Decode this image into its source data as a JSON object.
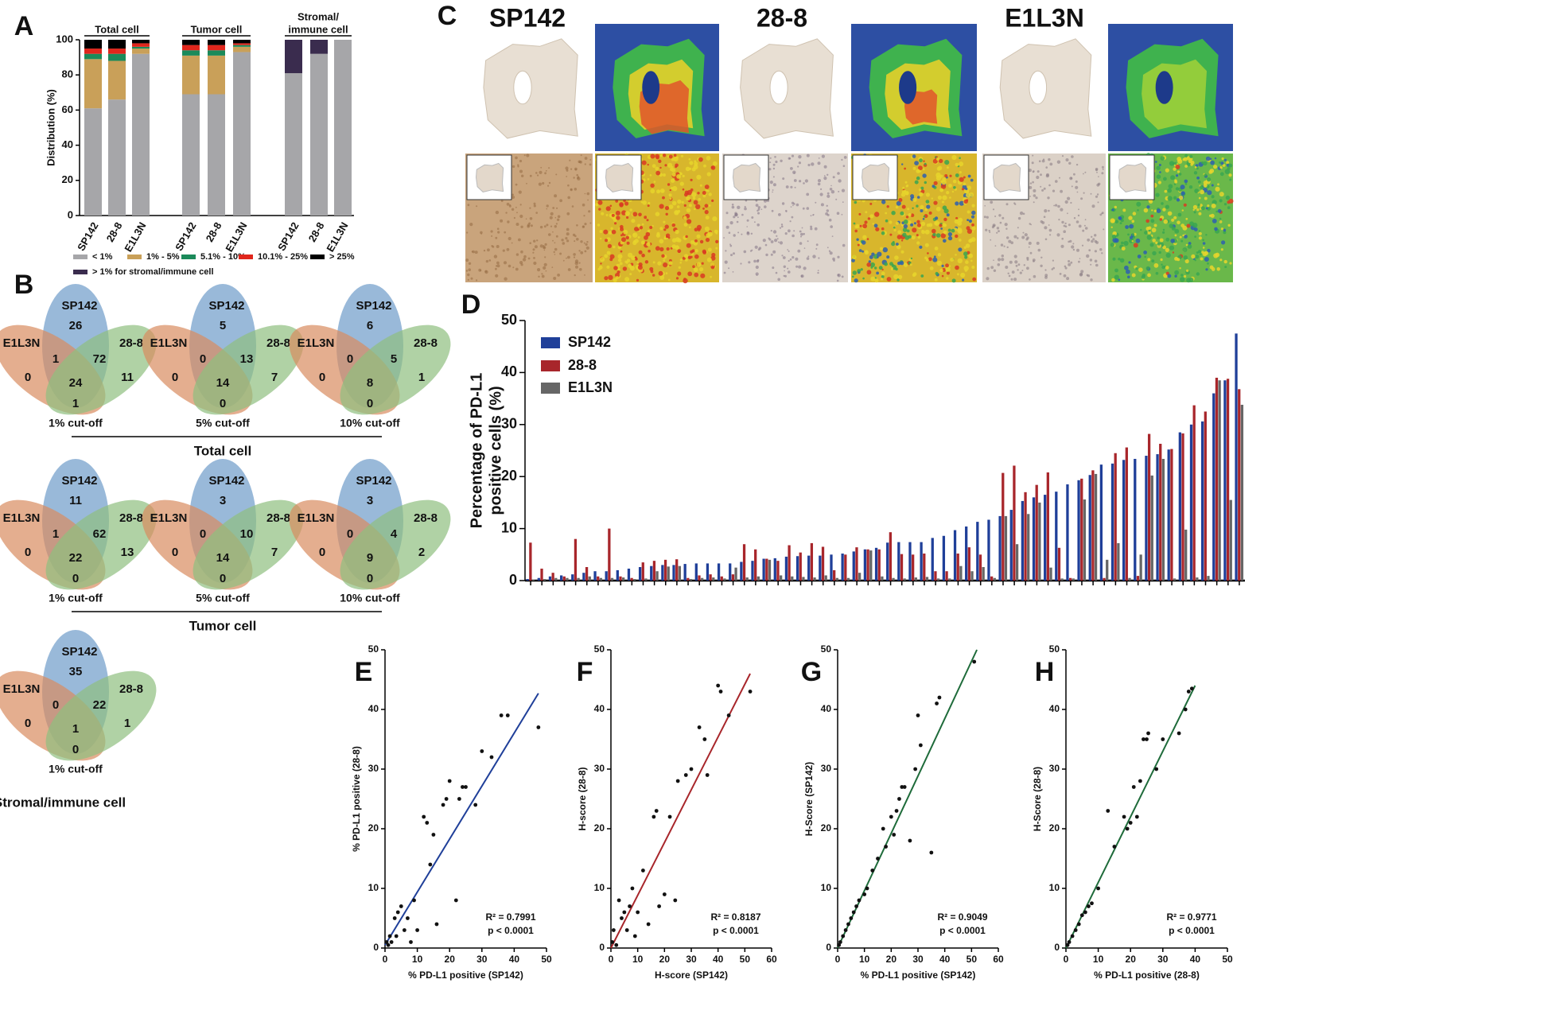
{
  "chart_data": [
    {
      "type": "stacked_bar",
      "panel": "A",
      "ylabel": "Distribution (%)",
      "ylim": [
        0,
        100
      ],
      "yticks": [
        0,
        20,
        40,
        60,
        80,
        100
      ],
      "groups": [
        [
          "Total cell"
        ],
        [
          "Tumor cell"
        ],
        [
          "Stromal/",
          "immune cell"
        ]
      ],
      "categories": [
        "SP142",
        "28-8",
        "E1L3N",
        "SP142",
        "28-8",
        "E1L3N",
        "SP142",
        "28-8",
        "E1L3N"
      ],
      "series": [
        {
          "name": "< 1%",
          "color": "#a6a6a9",
          "values": [
            61,
            66,
            92,
            69,
            69,
            93,
            81,
            92,
            100
          ]
        },
        {
          "name": "1% - 5%",
          "color": "#c9a059",
          "values": [
            28,
            22,
            3,
            22,
            22,
            3,
            0,
            0,
            0
          ]
        },
        {
          "name": "5.1% - 10%",
          "color": "#1b8a5a",
          "values": [
            3,
            4,
            1,
            3,
            3,
            1,
            0,
            0,
            0
          ]
        },
        {
          "name": "10.1% - 25%",
          "color": "#e0261c",
          "values": [
            3,
            3,
            2,
            3,
            3,
            1,
            0,
            0,
            0
          ]
        },
        {
          "name": "> 25%",
          "color": "#000000",
          "values": [
            5,
            5,
            2,
            3,
            3,
            2,
            0,
            0,
            0
          ]
        },
        {
          "name": "> 1% for stromal/immune cell",
          "color": "#3a2c4e",
          "values": [
            0,
            0,
            0,
            0,
            0,
            0,
            19,
            8,
            0
          ]
        }
      ]
    },
    {
      "type": "bar",
      "panel": "D",
      "ylabel": [
        "Percentage of PD-L1",
        "positive cells (%)"
      ],
      "ylim": [
        0,
        50
      ],
      "yticks": [
        0,
        10,
        20,
        30,
        40,
        50
      ],
      "categories": [
        null,
        null,
        null,
        null,
        null,
        null,
        null,
        null,
        null,
        null,
        null,
        null,
        null,
        null,
        null,
        null,
        null,
        null,
        null,
        null,
        null,
        null,
        null,
        null,
        null,
        null,
        null,
        null,
        null,
        null,
        null,
        null,
        null,
        null,
        null,
        null,
        null,
        null,
        null,
        null,
        null,
        null,
        null,
        null,
        null,
        null,
        null,
        null,
        null,
        null,
        null,
        null,
        null,
        null,
        null,
        null,
        null,
        null,
        null,
        null,
        null,
        null,
        null,
        null
      ],
      "series": [
        {
          "name": "SP142",
          "color": "#1f3f99",
          "values": [
            0.3,
            0.5,
            0.8,
            1.0,
            1.2,
            1.5,
            1.8,
            1.8,
            2.0,
            2.3,
            2.6,
            2.8,
            3.0,
            3.0,
            3.2,
            3.3,
            3.3,
            3.3,
            3.3,
            3.6,
            3.8,
            4.2,
            4.3,
            4.6,
            4.7,
            4.8,
            4.8,
            5.0,
            5.2,
            5.6,
            6.0,
            6.3,
            7.3,
            7.4,
            7.4,
            7.4,
            8.2,
            8.6,
            9.7,
            10.4,
            11.3,
            11.7,
            12.4,
            13.6,
            15.3,
            16.0,
            16.5,
            17.1,
            18.5,
            19.3,
            20.3,
            22.3,
            22.5,
            23.2,
            23.4,
            24.0,
            24.3,
            25.2,
            28.5,
            30.0,
            30.6,
            36.0,
            38.5,
            47.5
          ]
        },
        {
          "name": "28-8",
          "color": "#a8262b",
          "values": [
            7.3,
            2.3,
            1.5,
            0.8,
            8.0,
            2.6,
            0.8,
            10.0,
            0.8,
            0.5,
            3.5,
            3.8,
            4.0,
            4.1,
            0.5,
            1.0,
            1.2,
            0.8,
            1.2,
            7.0,
            6.0,
            4.2,
            3.8,
            6.8,
            5.4,
            7.2,
            6.5,
            2.0,
            5.0,
            6.4,
            6.0,
            6.0,
            9.3,
            5.1,
            5.0,
            5.2,
            1.8,
            1.8,
            5.2,
            6.4,
            5.0,
            0.8,
            20.7,
            22.1,
            17.0,
            18.4,
            20.8,
            6.3,
            0.5,
            19.6,
            21.2,
            0.5,
            24.5,
            25.6,
            0.9,
            28.2,
            26.3,
            25.3,
            28.3,
            33.7,
            32.5,
            39.0,
            38.8,
            36.8
          ]
        },
        {
          "name": "E1L3N",
          "color": "#666666",
          "values": [
            0.2,
            0.3,
            0.5,
            0.5,
            0.5,
            0.8,
            0.5,
            0.5,
            0.6,
            0.3,
            0.4,
            1.8,
            2.7,
            2.8,
            0.3,
            0.5,
            0.6,
            0.4,
            2.5,
            0.6,
            0.8,
            4.0,
            1.0,
            0.8,
            0.7,
            0.6,
            1.0,
            0.5,
            0.5,
            1.5,
            5.8,
            0.8,
            0.5,
            0.4,
            0.6,
            0.7,
            0.4,
            0.4,
            2.8,
            1.8,
            2.6,
            0.5,
            12.4,
            7.0,
            12.8,
            15.0,
            2.5,
            0.4,
            0.4,
            15.6,
            20.5,
            4.0,
            7.2,
            0.5,
            5.0,
            20.2,
            23.4,
            0.4,
            9.8,
            0.6,
            0.9,
            38.5,
            15.5,
            33.8
          ]
        }
      ]
    },
    {
      "type": "scatter",
      "panel": "E",
      "xlabel": "% PD-L1 positive (SP142)",
      "ylabel": "% PD-L1 positive (28-8)",
      "xlim": [
        0,
        50
      ],
      "ylim": [
        0,
        50
      ],
      "xticks": [
        0,
        10,
        20,
        30,
        40,
        50
      ],
      "yticks": [
        0,
        10,
        20,
        30,
        40,
        50
      ],
      "color": "#111111",
      "x": [
        0.5,
        1,
        1.5,
        2,
        3,
        3.5,
        4,
        5,
        6,
        7,
        8,
        9,
        10,
        12,
        13,
        14,
        15,
        16,
        18,
        19,
        20,
        22,
        23,
        24,
        25,
        28,
        30,
        33,
        36,
        38,
        47.5
      ],
      "values": [
        1,
        0.5,
        2,
        1,
        5,
        2,
        6,
        7,
        3,
        5,
        1,
        8,
        3,
        22,
        21,
        14,
        19,
        4,
        24,
        25,
        28,
        8,
        25,
        27,
        27,
        24,
        33,
        32,
        39,
        39,
        37
      ],
      "fit": {
        "color": "#1f3f99",
        "x": [
          0,
          47.5
        ],
        "values": [
          0.5,
          42.7
        ]
      },
      "annotations": [
        "R² = 0.7991",
        "p < 0.0001"
      ]
    },
    {
      "type": "scatter",
      "panel": "F",
      "xlabel": "H-score (SP142)",
      "ylabel": "H-score (28-8)",
      "xlim": [
        0,
        60
      ],
      "ylim": [
        0,
        50
      ],
      "xticks": [
        0,
        10,
        20,
        30,
        40,
        50,
        60
      ],
      "yticks": [
        0,
        10,
        20,
        30,
        40,
        50
      ],
      "color": "#111111",
      "x": [
        0.5,
        1,
        2,
        3,
        4,
        5,
        6,
        7,
        8,
        9,
        10,
        12,
        14,
        16,
        17,
        18,
        20,
        22,
        24,
        25,
        28,
        30,
        33,
        35,
        36,
        40,
        41,
        44,
        52
      ],
      "values": [
        1,
        3,
        0.5,
        8,
        5,
        6,
        3,
        7,
        10,
        2,
        6,
        13,
        4,
        22,
        23,
        7,
        9,
        22,
        8,
        28,
        29,
        30,
        37,
        35,
        29,
        44,
        43,
        39,
        43
      ],
      "fit": {
        "color": "#a8262b",
        "x": [
          0,
          52
        ],
        "values": [
          0,
          46
        ]
      },
      "annotations": [
        "R² = 0.8187",
        "p < 0.0001"
      ]
    },
    {
      "type": "scatter",
      "panel": "G",
      "xlabel": "% PD-L1 positive (SP142)",
      "ylabel": "H-Score (SP142)",
      "xlim": [
        0,
        60
      ],
      "ylim": [
        0,
        50
      ],
      "xticks": [
        0,
        10,
        20,
        30,
        40,
        50,
        60
      ],
      "yticks": [
        0,
        10,
        20,
        30,
        40,
        50
      ],
      "color": "#111111",
      "x": [
        0.5,
        1,
        2,
        3,
        4,
        5,
        6,
        7,
        8,
        10,
        11,
        13,
        15,
        17,
        18,
        20,
        21,
        22,
        23,
        24,
        25,
        27,
        29,
        30,
        31,
        35,
        37,
        38,
        51
      ],
      "values": [
        0.5,
        1,
        2,
        3,
        4,
        5,
        6,
        7,
        8,
        9,
        10,
        13,
        15,
        20,
        17,
        22,
        19,
        23,
        25,
        27,
        27,
        18,
        30,
        39,
        34,
        16,
        41,
        42,
        48
      ],
      "fit": {
        "color": "#1e6b3a",
        "x": [
          0,
          52
        ],
        "values": [
          0,
          50
        ]
      },
      "annotations": [
        "R² = 0.9049",
        "p < 0.0001"
      ]
    },
    {
      "type": "scatter",
      "panel": "H",
      "xlabel": "% PD-L1 positive (28-8)",
      "ylabel": "H-Score (28-8)",
      "xlim": [
        0,
        50
      ],
      "ylim": [
        0,
        50
      ],
      "xticks": [
        0,
        10,
        20,
        30,
        40,
        50
      ],
      "yticks": [
        0,
        10,
        20,
        30,
        40,
        50
      ],
      "color": "#111111",
      "x": [
        0.5,
        1,
        2,
        3,
        4,
        5,
        6,
        7,
        8,
        10,
        13,
        15,
        18,
        19,
        20,
        21,
        22,
        23,
        24,
        25,
        25.5,
        28,
        30,
        35,
        37,
        38,
        39
      ],
      "values": [
        0.5,
        1,
        2,
        3,
        4,
        5.5,
        6,
        7,
        7.5,
        10,
        23,
        17,
        22,
        20,
        21,
        27,
        22,
        28,
        35,
        35,
        36,
        30,
        35,
        36,
        40,
        43,
        43.5
      ],
      "fit": {
        "color": "#1e6b3a",
        "x": [
          0,
          40
        ],
        "values": [
          0,
          44
        ]
      },
      "annotations": [
        "R² = 0.9771",
        "p < 0.0001"
      ]
    }
  ],
  "venn": {
    "panel": "B",
    "sets": [
      "SP142",
      "E1L3N",
      "28-8"
    ],
    "groups": [
      {
        "title": "Total cell",
        "diagrams": [
          {
            "cutoff": "1% cut-off",
            "values": [
              26,
              0,
              11,
              1,
              72,
              24,
              1
            ]
          },
          {
            "cutoff": "5% cut-off",
            "values": [
              5,
              0,
              7,
              0,
              13,
              14,
              0
            ]
          },
          {
            "cutoff": "10% cut-off",
            "values": [
              6,
              0,
              1,
              0,
              5,
              8,
              0
            ]
          }
        ]
      },
      {
        "title": "Tumor cell",
        "diagrams": [
          {
            "cutoff": "1% cut-off",
            "values": [
              11,
              0,
              13,
              1,
              62,
              22,
              0
            ]
          },
          {
            "cutoff": "5% cut-off",
            "values": [
              3,
              0,
              7,
              0,
              10,
              14,
              0
            ]
          },
          {
            "cutoff": "10% cut-off",
            "values": [
              3,
              0,
              2,
              0,
              4,
              9,
              0
            ]
          }
        ]
      },
      {
        "title": "Stromal/immune cell",
        "diagrams": [
          {
            "cutoff": "1% cut-off",
            "values": [
              35,
              0,
              1,
              0,
              22,
              1,
              0
            ]
          }
        ]
      }
    ]
  },
  "images": {
    "panel": "C",
    "titles": [
      "SP142",
      "28-8",
      "E1L3N"
    ]
  }
}
